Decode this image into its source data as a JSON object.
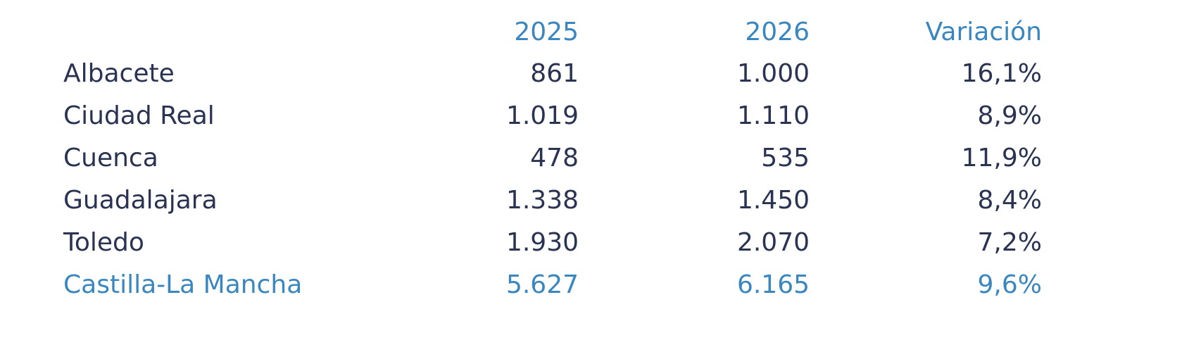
{
  "table": {
    "header": [
      "2025",
      "2026",
      "Variación"
    ],
    "rows": [
      [
        "Albacete",
        "861",
        "1.000",
        "16,1%"
      ],
      [
        "Ciudad Real",
        "1.019",
        "1.110",
        "8,9%"
      ],
      [
        "Cuenca",
        "478",
        "535",
        "11,9%"
      ],
      [
        "Guadalajara",
        "1.338",
        "1.450",
        "8,4%"
      ],
      [
        "Toledo",
        "1.930",
        "2.070",
        "7,2%"
      ],
      [
        "Castilla-La Mancha",
        "5.627",
        "6.165",
        "9,6%"
      ]
    ]
  }
}
